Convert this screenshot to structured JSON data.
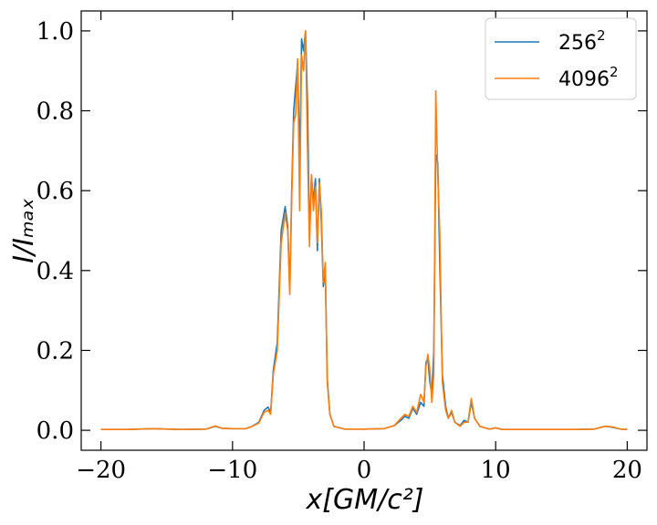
{
  "chart_data": {
    "type": "line",
    "xlabel": "x[GM/c²]",
    "ylabel": "I/Iₘₐₓ",
    "xlim": [
      -21.5,
      21.5
    ],
    "ylim": [
      -0.05,
      1.05
    ],
    "x_ticks": [
      -20,
      -10,
      0,
      10,
      20
    ],
    "x_tick_labels": [
      "−20",
      "−10",
      "0",
      "10",
      "20"
    ],
    "y_ticks": [
      0.0,
      0.2,
      0.4,
      0.6,
      0.8,
      1.0
    ],
    "y_tick_labels": [
      "0.0",
      "0.2",
      "0.4",
      "0.6",
      "0.8",
      "1.0"
    ],
    "grid": false,
    "legend_position": "top-right",
    "series": [
      {
        "name": "256²",
        "legend_base": "256",
        "legend_sup": "2",
        "color": "#1f77b4",
        "points": [
          [
            -20,
            0.002
          ],
          [
            -18,
            0.002
          ],
          [
            -16,
            0.004
          ],
          [
            -14,
            0.002
          ],
          [
            -12,
            0.003
          ],
          [
            -11.3,
            0.01
          ],
          [
            -10.8,
            0.005
          ],
          [
            -10,
            0.004
          ],
          [
            -9,
            0.004
          ],
          [
            -8.5,
            0.01
          ],
          [
            -8,
            0.02
          ],
          [
            -7.6,
            0.05
          ],
          [
            -7.3,
            0.058
          ],
          [
            -7.1,
            0.045
          ],
          [
            -6.9,
            0.15
          ],
          [
            -6.6,
            0.22
          ],
          [
            -6.3,
            0.5
          ],
          [
            -6.0,
            0.56
          ],
          [
            -5.8,
            0.51
          ],
          [
            -5.65,
            0.35
          ],
          [
            -5.5,
            0.6
          ],
          [
            -5.35,
            0.8
          ],
          [
            -5.2,
            0.86
          ],
          [
            -5.05,
            0.92
          ],
          [
            -4.9,
            0.67
          ],
          [
            -4.75,
            0.98
          ],
          [
            -4.6,
            0.95
          ],
          [
            -4.45,
            1.0
          ],
          [
            -4.3,
            0.82
          ],
          [
            -4.15,
            0.48
          ],
          [
            -4.0,
            0.64
          ],
          [
            -3.85,
            0.57
          ],
          [
            -3.7,
            0.63
          ],
          [
            -3.55,
            0.45
          ],
          [
            -3.4,
            0.63
          ],
          [
            -3.25,
            0.52
          ],
          [
            -3.1,
            0.36
          ],
          [
            -2.95,
            0.4
          ],
          [
            -2.8,
            0.13
          ],
          [
            -2.6,
            0.04
          ],
          [
            -2.3,
            0.01
          ],
          [
            -1.5,
            0.003
          ],
          [
            0,
            0.003
          ],
          [
            1.5,
            0.004
          ],
          [
            2.3,
            0.012
          ],
          [
            2.8,
            0.025
          ],
          [
            3.1,
            0.035
          ],
          [
            3.4,
            0.03
          ],
          [
            3.7,
            0.055
          ],
          [
            4.0,
            0.04
          ],
          [
            4.3,
            0.07
          ],
          [
            4.55,
            0.06
          ],
          [
            4.7,
            0.17
          ],
          [
            4.85,
            0.18
          ],
          [
            5.0,
            0.12
          ],
          [
            5.15,
            0.09
          ],
          [
            5.3,
            0.2
          ],
          [
            5.45,
            0.69
          ],
          [
            5.6,
            0.67
          ],
          [
            5.75,
            0.42
          ],
          [
            5.95,
            0.14
          ],
          [
            6.2,
            0.06
          ],
          [
            6.4,
            0.03
          ],
          [
            6.65,
            0.045
          ],
          [
            6.9,
            0.02
          ],
          [
            7.3,
            0.012
          ],
          [
            7.6,
            0.025
          ],
          [
            7.9,
            0.02
          ],
          [
            8.15,
            0.07
          ],
          [
            8.4,
            0.03
          ],
          [
            8.8,
            0.01
          ],
          [
            9.5,
            0.003
          ],
          [
            10.0,
            0.006
          ],
          [
            10.5,
            0.002
          ],
          [
            12,
            0.002
          ],
          [
            14,
            0.002
          ],
          [
            16,
            0.002
          ],
          [
            17.5,
            0.003
          ],
          [
            18.3,
            0.01
          ],
          [
            18.8,
            0.008
          ],
          [
            19.5,
            0.003
          ],
          [
            20,
            0.002
          ]
        ]
      },
      {
        "name": "4096²",
        "legend_base": "4096",
        "legend_sup": "2",
        "color": "#ff7f0e",
        "points": [
          [
            -20,
            0.002
          ],
          [
            -18,
            0.002
          ],
          [
            -16,
            0.004
          ],
          [
            -14,
            0.002
          ],
          [
            -12,
            0.003
          ],
          [
            -11.3,
            0.011
          ],
          [
            -10.8,
            0.005
          ],
          [
            -10,
            0.004
          ],
          [
            -9,
            0.004
          ],
          [
            -8.5,
            0.01
          ],
          [
            -8,
            0.018
          ],
          [
            -7.6,
            0.045
          ],
          [
            -7.3,
            0.05
          ],
          [
            -7.1,
            0.04
          ],
          [
            -6.9,
            0.14
          ],
          [
            -6.6,
            0.2
          ],
          [
            -6.3,
            0.47
          ],
          [
            -6.0,
            0.54
          ],
          [
            -5.8,
            0.5
          ],
          [
            -5.65,
            0.34
          ],
          [
            -5.5,
            0.58
          ],
          [
            -5.35,
            0.77
          ],
          [
            -5.2,
            0.79
          ],
          [
            -5.05,
            0.93
          ],
          [
            -4.9,
            0.55
          ],
          [
            -4.75,
            0.94
          ],
          [
            -4.6,
            0.9
          ],
          [
            -4.45,
            1.0
          ],
          [
            -4.3,
            0.7
          ],
          [
            -4.15,
            0.46
          ],
          [
            -4.0,
            0.64
          ],
          [
            -3.85,
            0.55
          ],
          [
            -3.7,
            0.61
          ],
          [
            -3.55,
            0.47
          ],
          [
            -3.4,
            0.62
          ],
          [
            -3.25,
            0.55
          ],
          [
            -3.1,
            0.37
          ],
          [
            -2.95,
            0.42
          ],
          [
            -2.8,
            0.12
          ],
          [
            -2.6,
            0.04
          ],
          [
            -2.3,
            0.01
          ],
          [
            -1.5,
            0.003
          ],
          [
            0,
            0.003
          ],
          [
            1.5,
            0.004
          ],
          [
            2.3,
            0.012
          ],
          [
            2.8,
            0.03
          ],
          [
            3.1,
            0.04
          ],
          [
            3.4,
            0.035
          ],
          [
            3.7,
            0.06
          ],
          [
            4.0,
            0.045
          ],
          [
            4.3,
            0.09
          ],
          [
            4.55,
            0.07
          ],
          [
            4.7,
            0.16
          ],
          [
            4.85,
            0.19
          ],
          [
            5.0,
            0.15
          ],
          [
            5.15,
            0.07
          ],
          [
            5.3,
            0.14
          ],
          [
            5.45,
            0.85
          ],
          [
            5.6,
            0.64
          ],
          [
            5.75,
            0.5
          ],
          [
            5.95,
            0.12
          ],
          [
            6.2,
            0.05
          ],
          [
            6.4,
            0.03
          ],
          [
            6.65,
            0.05
          ],
          [
            6.9,
            0.02
          ],
          [
            7.3,
            0.01
          ],
          [
            7.6,
            0.02
          ],
          [
            7.9,
            0.02
          ],
          [
            8.15,
            0.08
          ],
          [
            8.4,
            0.03
          ],
          [
            8.8,
            0.01
          ],
          [
            9.5,
            0.003
          ],
          [
            10.0,
            0.006
          ],
          [
            10.5,
            0.002
          ],
          [
            12,
            0.002
          ],
          [
            14,
            0.002
          ],
          [
            16,
            0.002
          ],
          [
            17.5,
            0.003
          ],
          [
            18.3,
            0.01
          ],
          [
            18.8,
            0.009
          ],
          [
            19.5,
            0.003
          ],
          [
            20,
            0.002
          ]
        ]
      }
    ]
  }
}
